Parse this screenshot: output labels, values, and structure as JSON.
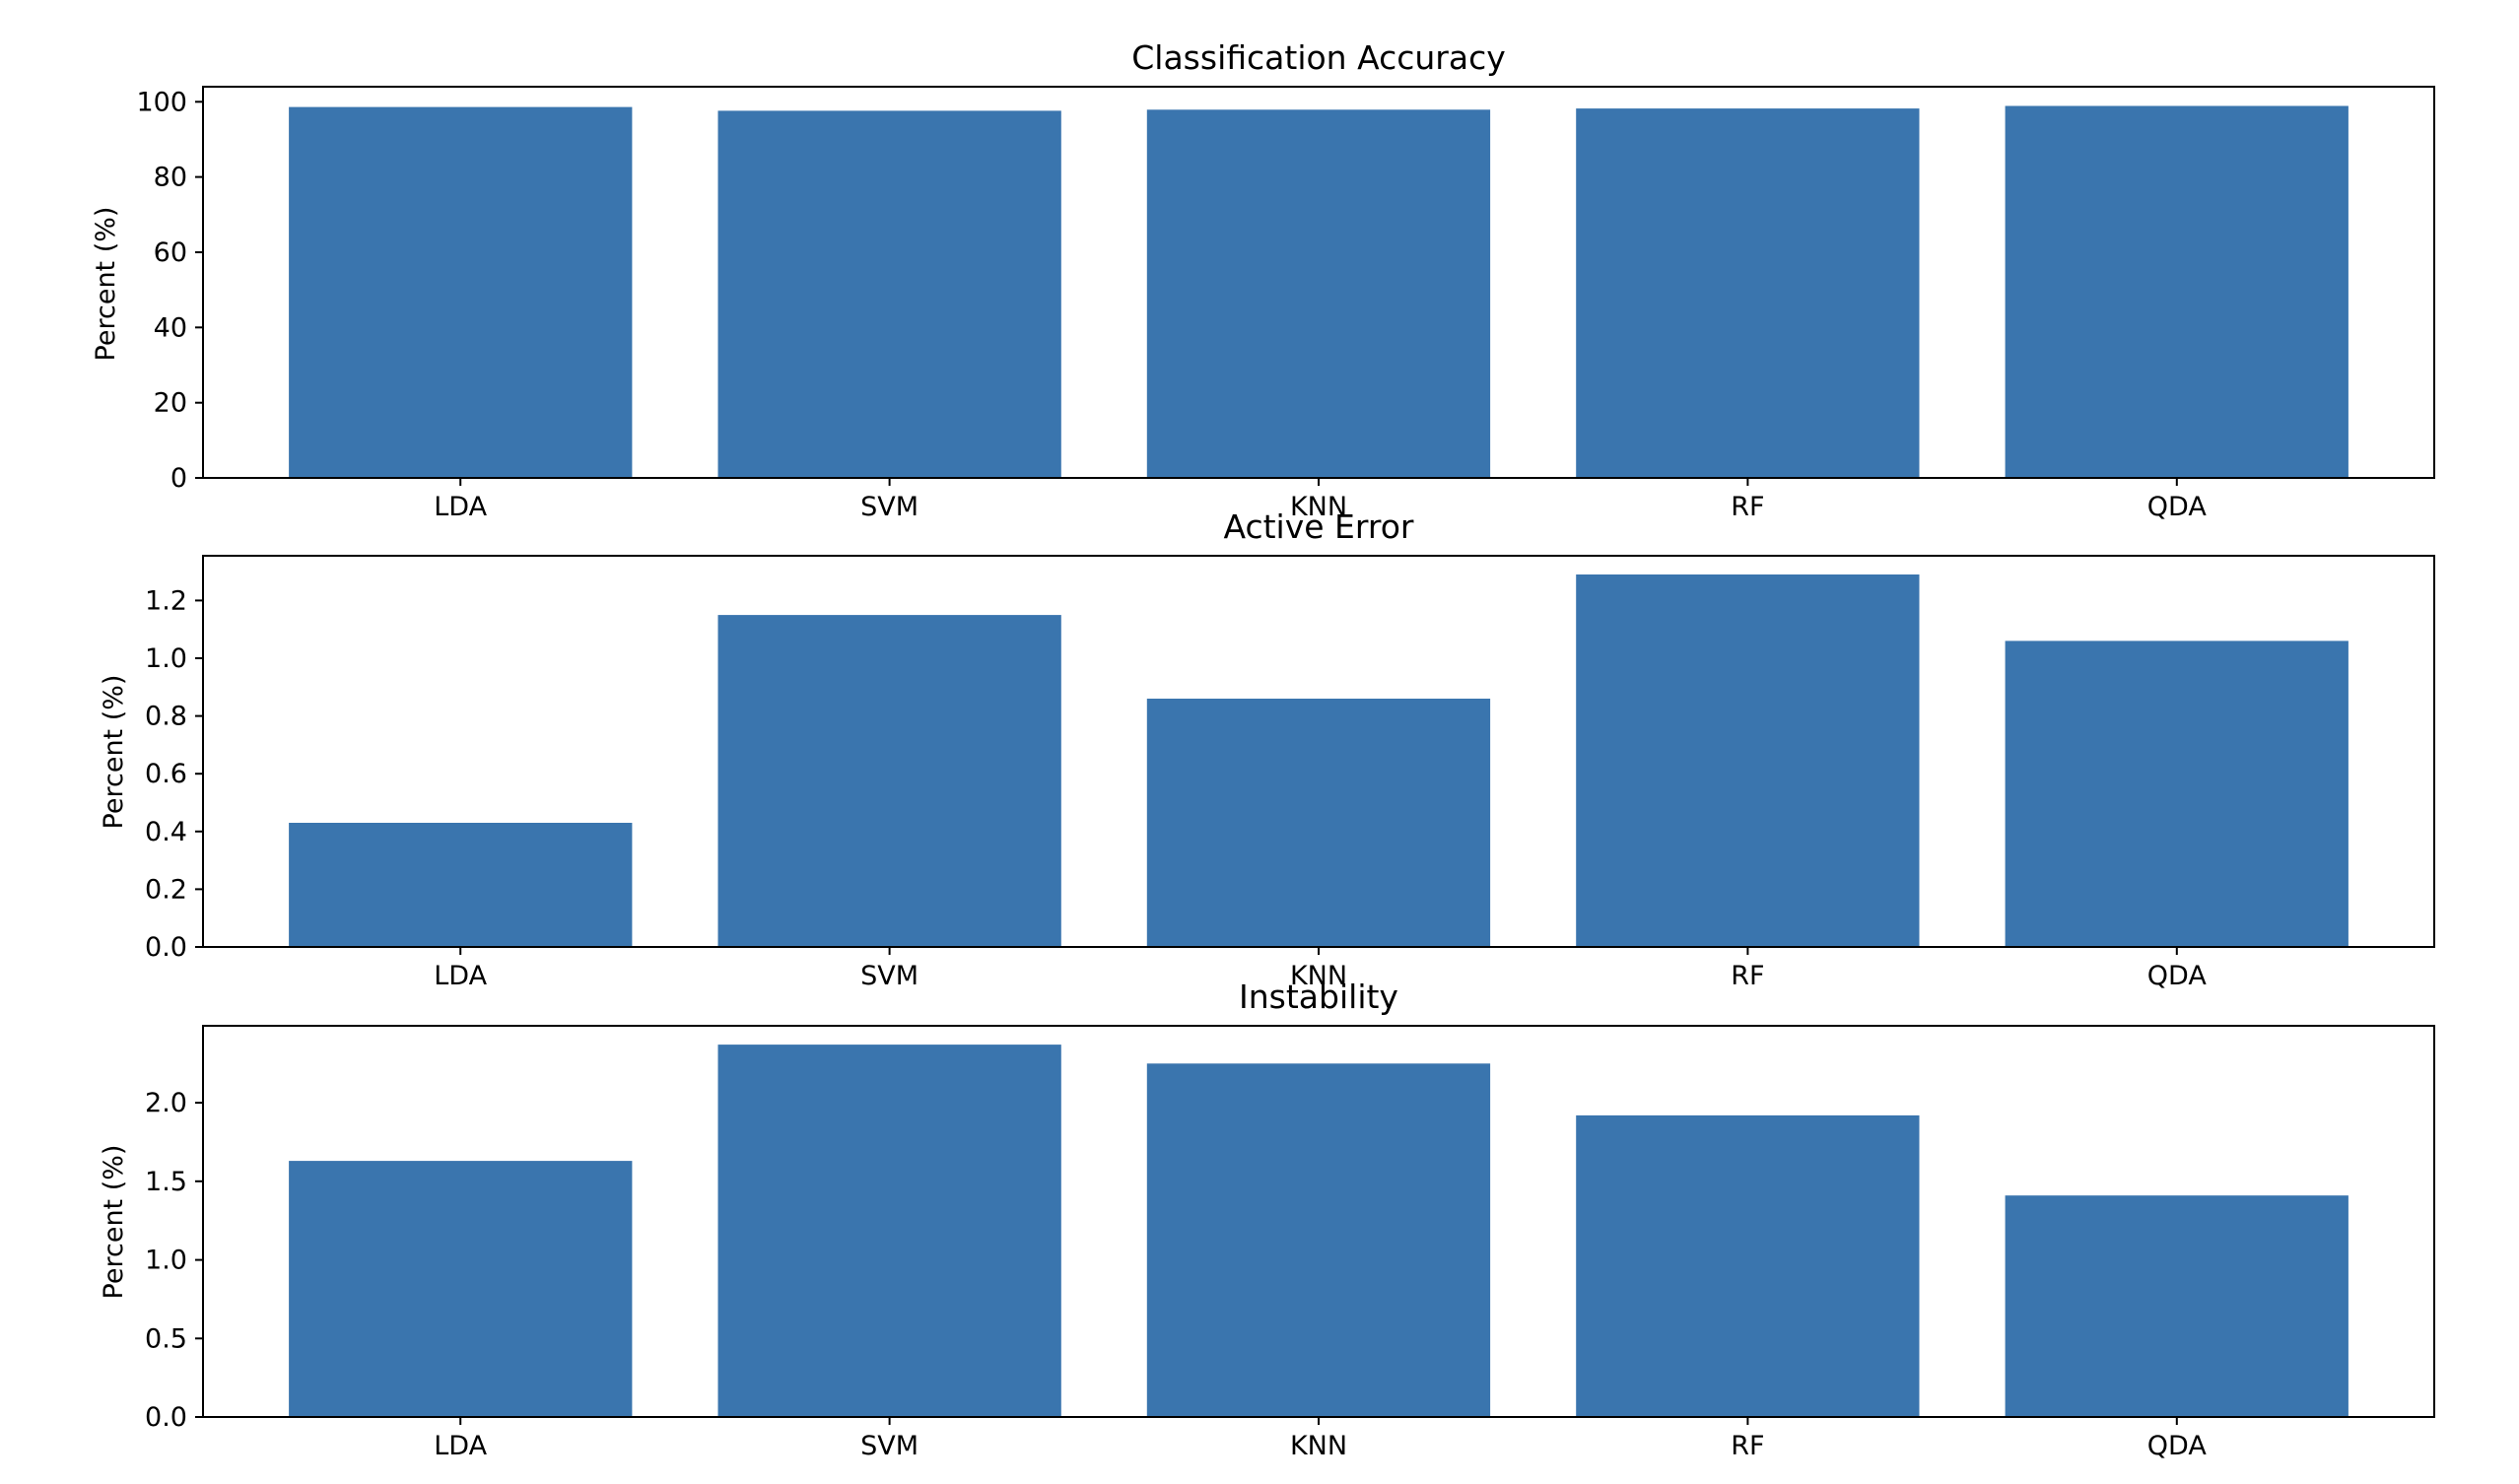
{
  "chart_data": [
    {
      "type": "bar",
      "title": "Classification Accuracy",
      "xlabel": "",
      "ylabel": "Percent (%)",
      "categories": [
        "LDA",
        "SVM",
        "KNN",
        "RF",
        "QDA"
      ],
      "values": [
        98.6,
        97.6,
        97.9,
        98.2,
        98.9
      ],
      "ylim": [
        0,
        104
      ],
      "yticks": [
        0,
        20,
        40,
        60,
        80,
        100
      ],
      "ytick_labels": [
        "0",
        "20",
        "40",
        "60",
        "80",
        "100"
      ],
      "color": "#3a75ae",
      "grid": false,
      "legend": "none"
    },
    {
      "type": "bar",
      "title": "Active Error",
      "xlabel": "",
      "ylabel": "Percent (%)",
      "categories": [
        "LDA",
        "SVM",
        "KNN",
        "RF",
        "QDA"
      ],
      "values": [
        0.43,
        1.15,
        0.86,
        1.29,
        1.06
      ],
      "ylim": [
        0,
        1.355
      ],
      "yticks": [
        0.0,
        0.2,
        0.4,
        0.6,
        0.8,
        1.0,
        1.2
      ],
      "ytick_labels": [
        "0.0",
        "0.2",
        "0.4",
        "0.6",
        "0.8",
        "1.0",
        "1.2"
      ],
      "color": "#3a75ae",
      "grid": false,
      "legend": "none"
    },
    {
      "type": "bar",
      "title": "Instability",
      "xlabel": "",
      "ylabel": "Percent (%)",
      "categories": [
        "LDA",
        "SVM",
        "KNN",
        "RF",
        "QDA"
      ],
      "values": [
        1.63,
        2.37,
        2.25,
        1.92,
        1.41
      ],
      "ylim": [
        0,
        2.49
      ],
      "yticks": [
        0.0,
        0.5,
        1.0,
        1.5,
        2.0
      ],
      "ytick_labels": [
        "0.0",
        "0.5",
        "1.0",
        "1.5",
        "2.0"
      ],
      "color": "#3a75ae",
      "grid": false,
      "legend": "none"
    }
  ]
}
